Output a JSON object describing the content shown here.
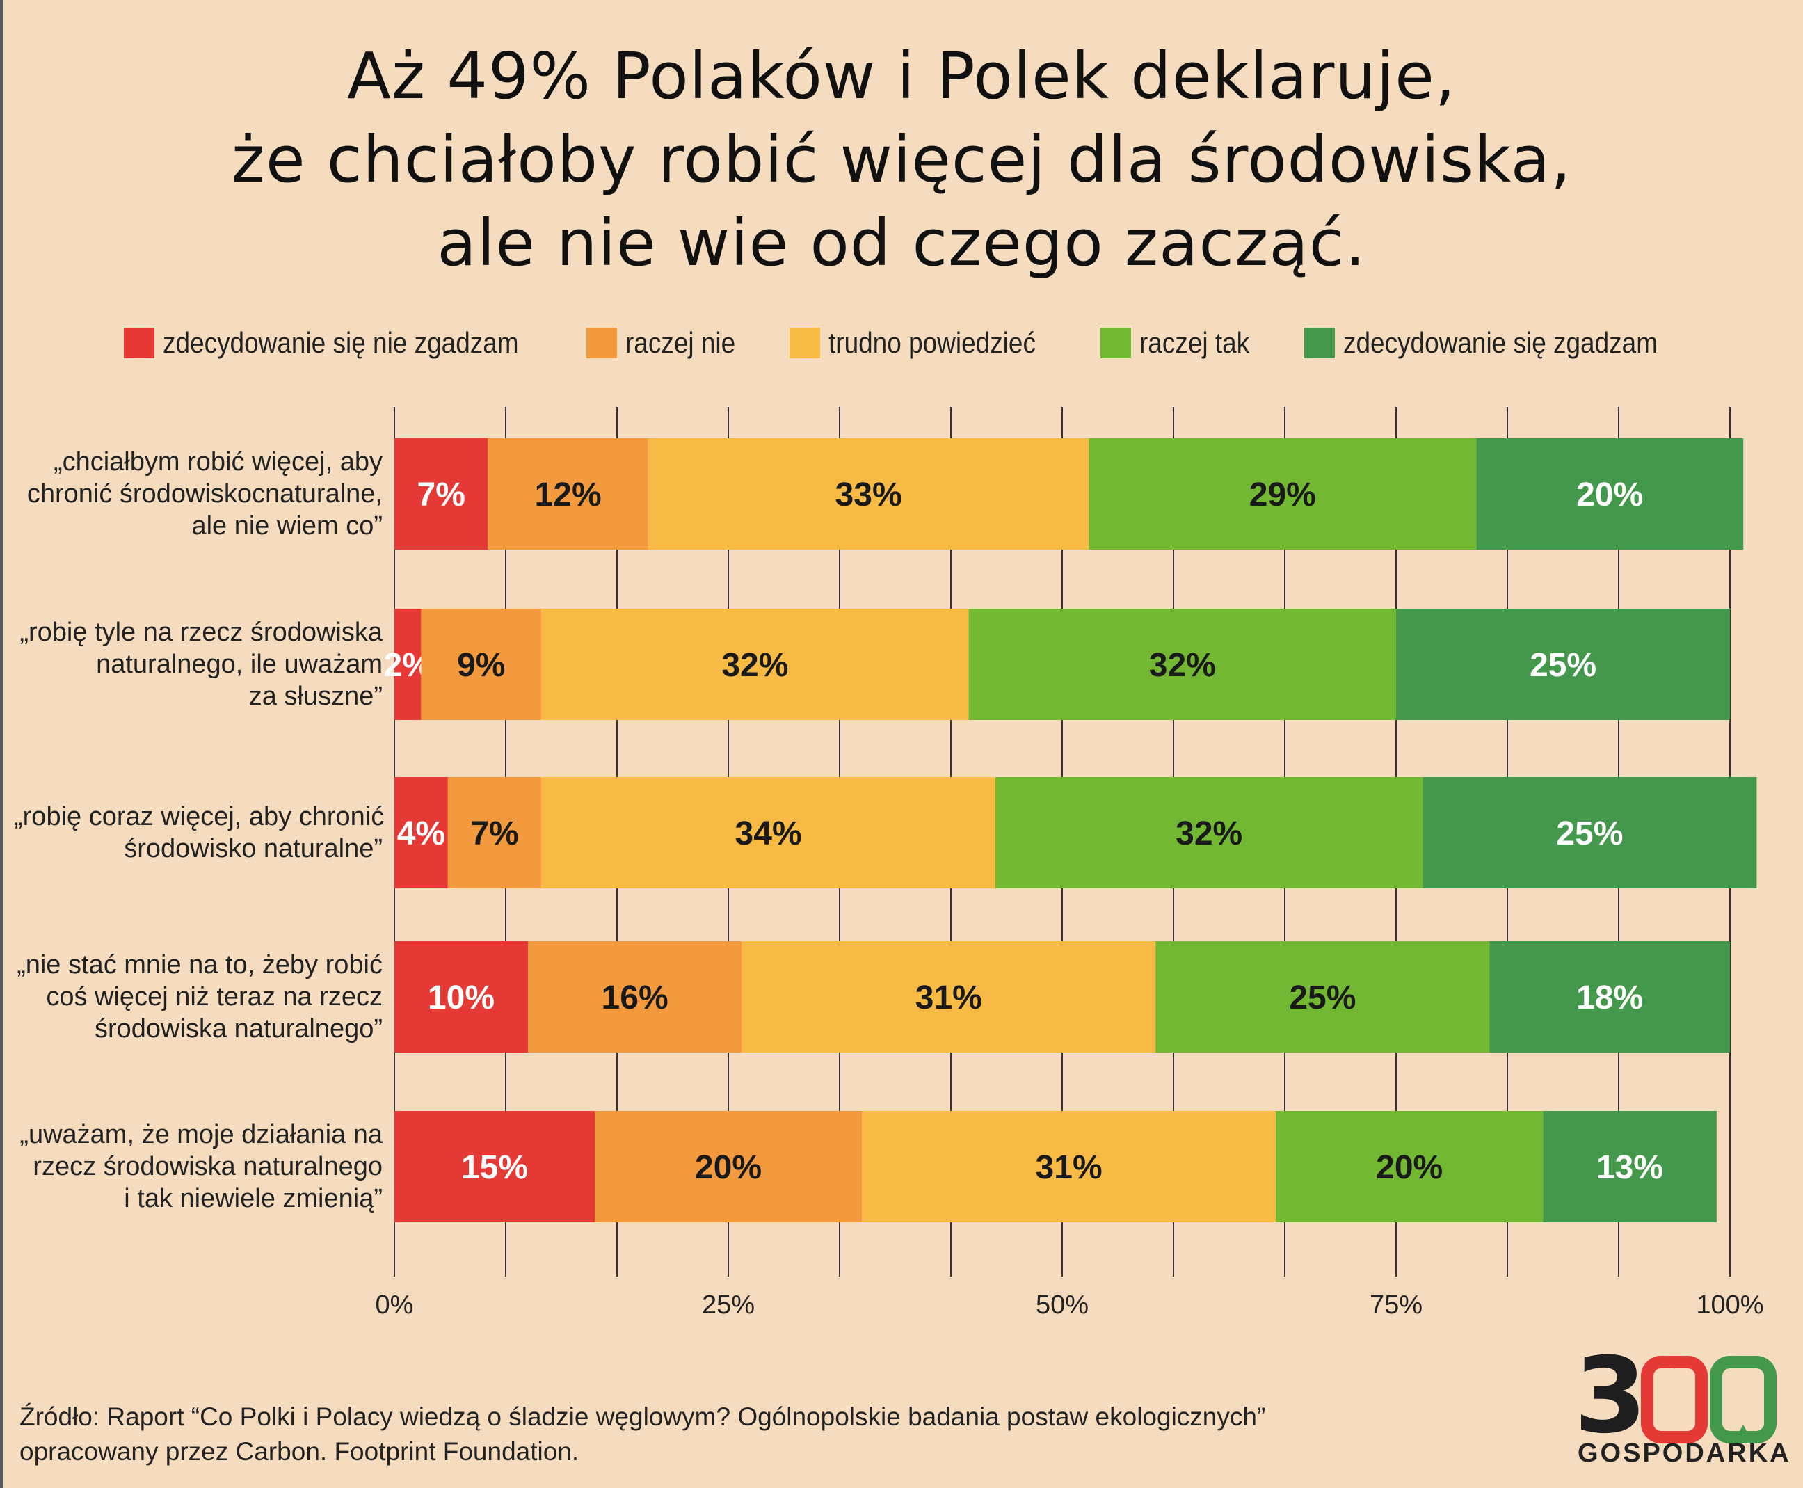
{
  "title_lines": [
    "Aż 49% Polaków i Polek deklaruje,",
    "że chciałoby robić więcej dla środowiska,",
    "ale nie wie od czego zacząć."
  ],
  "legend": [
    {
      "label": "zdecydowanie się nie zgadzam",
      "color": "#e53935"
    },
    {
      "label": "raczej nie",
      "color": "#f39a3f"
    },
    {
      "label": "trudno powiedzieć",
      "color": "#f7bb45"
    },
    {
      "label": "raczej tak",
      "color": "#72b832"
    },
    {
      "label": "zdecydowanie się zgadzam",
      "color": "#44984b"
    }
  ],
  "chart_data": {
    "type": "bar",
    "orientation": "horizontal",
    "stacked": true,
    "categories": [
      "„chciałbym robić więcej, aby chronić środowiskocnaturalne, ale nie wiem co”",
      "„robię tyle na rzecz środowiska naturalnego, ile uważam za słuszne”",
      "„robię coraz więcej, aby chronić środowisko naturalne”",
      "„nie stać mnie na to, żeby robić coś więcej niż teraz na rzecz środowiska naturalnego”",
      "„uważam, że moje działania na rzecz środowiska naturalnego i tak niewiele zmienią”"
    ],
    "category_lines": [
      [
        "„chciałbym robić więcej, aby",
        "chronić środowiskocnaturalne,",
        "ale nie wiem co”"
      ],
      [
        "„robię tyle na rzecz środowiska",
        "naturalnego, ile uważam",
        "za słuszne”"
      ],
      [
        "„robię coraz więcej, aby chronić",
        "środowisko naturalne”"
      ],
      [
        "„nie stać mnie na to, żeby robić",
        "coś więcej niż teraz na rzecz",
        "środowiska naturalnego”"
      ],
      [
        "„uważam, że moje działania na",
        "rzecz środowiska naturalnego",
        "i tak niewiele zmienią”"
      ]
    ],
    "series": [
      {
        "name": "zdecydowanie się nie zgadzam",
        "values": [
          7,
          2,
          4,
          10,
          15
        ],
        "labels": [
          "7%",
          "2%",
          "4%",
          "10%",
          "15%"
        ]
      },
      {
        "name": "raczej nie",
        "values": [
          12,
          9,
          7,
          16,
          20
        ],
        "labels": [
          "12%",
          "9%",
          "7%",
          "16%",
          "20%"
        ]
      },
      {
        "name": "trudno powiedzieć",
        "values": [
          33,
          32,
          34,
          31,
          31
        ],
        "labels": [
          "33%",
          "32%",
          "34%",
          "31%",
          "31%"
        ]
      },
      {
        "name": "raczej tak",
        "values": [
          29,
          32,
          32,
          25,
          20
        ],
        "labels": [
          "29%",
          "32%",
          "32%",
          "25%",
          "20%"
        ]
      },
      {
        "name": "zdecydowanie się zgadzam",
        "values": [
          20,
          25,
          25,
          18,
          13
        ],
        "labels": [
          "20%",
          "25%",
          "25%",
          "18%",
          "13%"
        ]
      }
    ],
    "xlim": [
      0,
      100
    ],
    "xticks": [
      "0%",
      "25%",
      "50%",
      "75%",
      "100%"
    ],
    "grid": true
  },
  "source": "Źródło: Raport “Co Polki i Polacy wiedzą o śladzie węglowym? Ogólnopolskie badania postaw ekologicznych” opracowany przez Carbon. Footprint Foundation.",
  "logo": {
    "number": "300",
    "word": "GOSPODARKA"
  }
}
